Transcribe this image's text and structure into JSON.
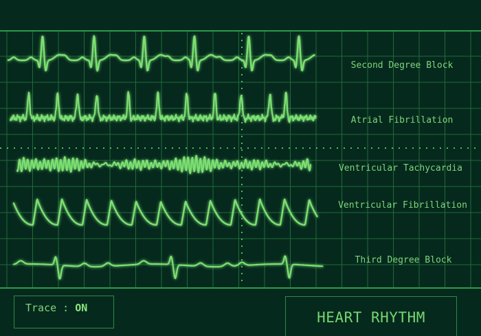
{
  "colors": {
    "background": "#06291d",
    "grid": "#1f6b3a",
    "trace": "#7be072",
    "text": "#7dd67a"
  },
  "rhythms": [
    {
      "id": "second-degree-block",
      "label": "Second Degree Block"
    },
    {
      "id": "atrial-fibrillation",
      "label": "Atrial Fibrillation"
    },
    {
      "id": "ventricular-tachycardia",
      "label": "Ventricular Tachycardia"
    },
    {
      "id": "ventricular-fibrillation",
      "label": "Ventricular Fibrillation"
    },
    {
      "id": "third-degree-block",
      "label": "Third Degree Block"
    }
  ],
  "trace": {
    "label": "Trace : ",
    "value": "ON"
  },
  "title": "HEART RHYTHM"
}
